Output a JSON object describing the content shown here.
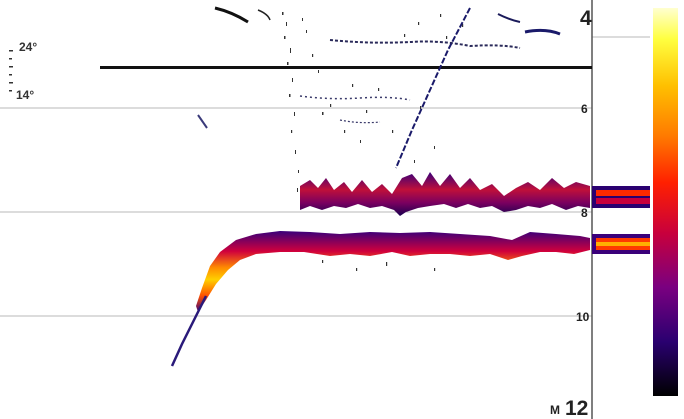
{
  "sonar": {
    "depth_scale": {
      "top_label": "4",
      "lines": [
        "6",
        "8",
        "10"
      ],
      "bottom_label": "12",
      "units": "M"
    },
    "temperature_scale": {
      "upper_label": "24°",
      "lower_label": "14°"
    },
    "colors": {
      "background": "#ffffff",
      "grid": "#b8b8b8",
      "thermocline": "#111111",
      "palette": [
        "#ffff66",
        "#ffd000",
        "#ff8a00",
        "#ff3000",
        "#d0003c",
        "#8a0078",
        "#3a007a",
        "#000000"
      ]
    },
    "color_bar": {
      "markers": [
        "thermocline-return",
        "bottom-return"
      ]
    }
  }
}
